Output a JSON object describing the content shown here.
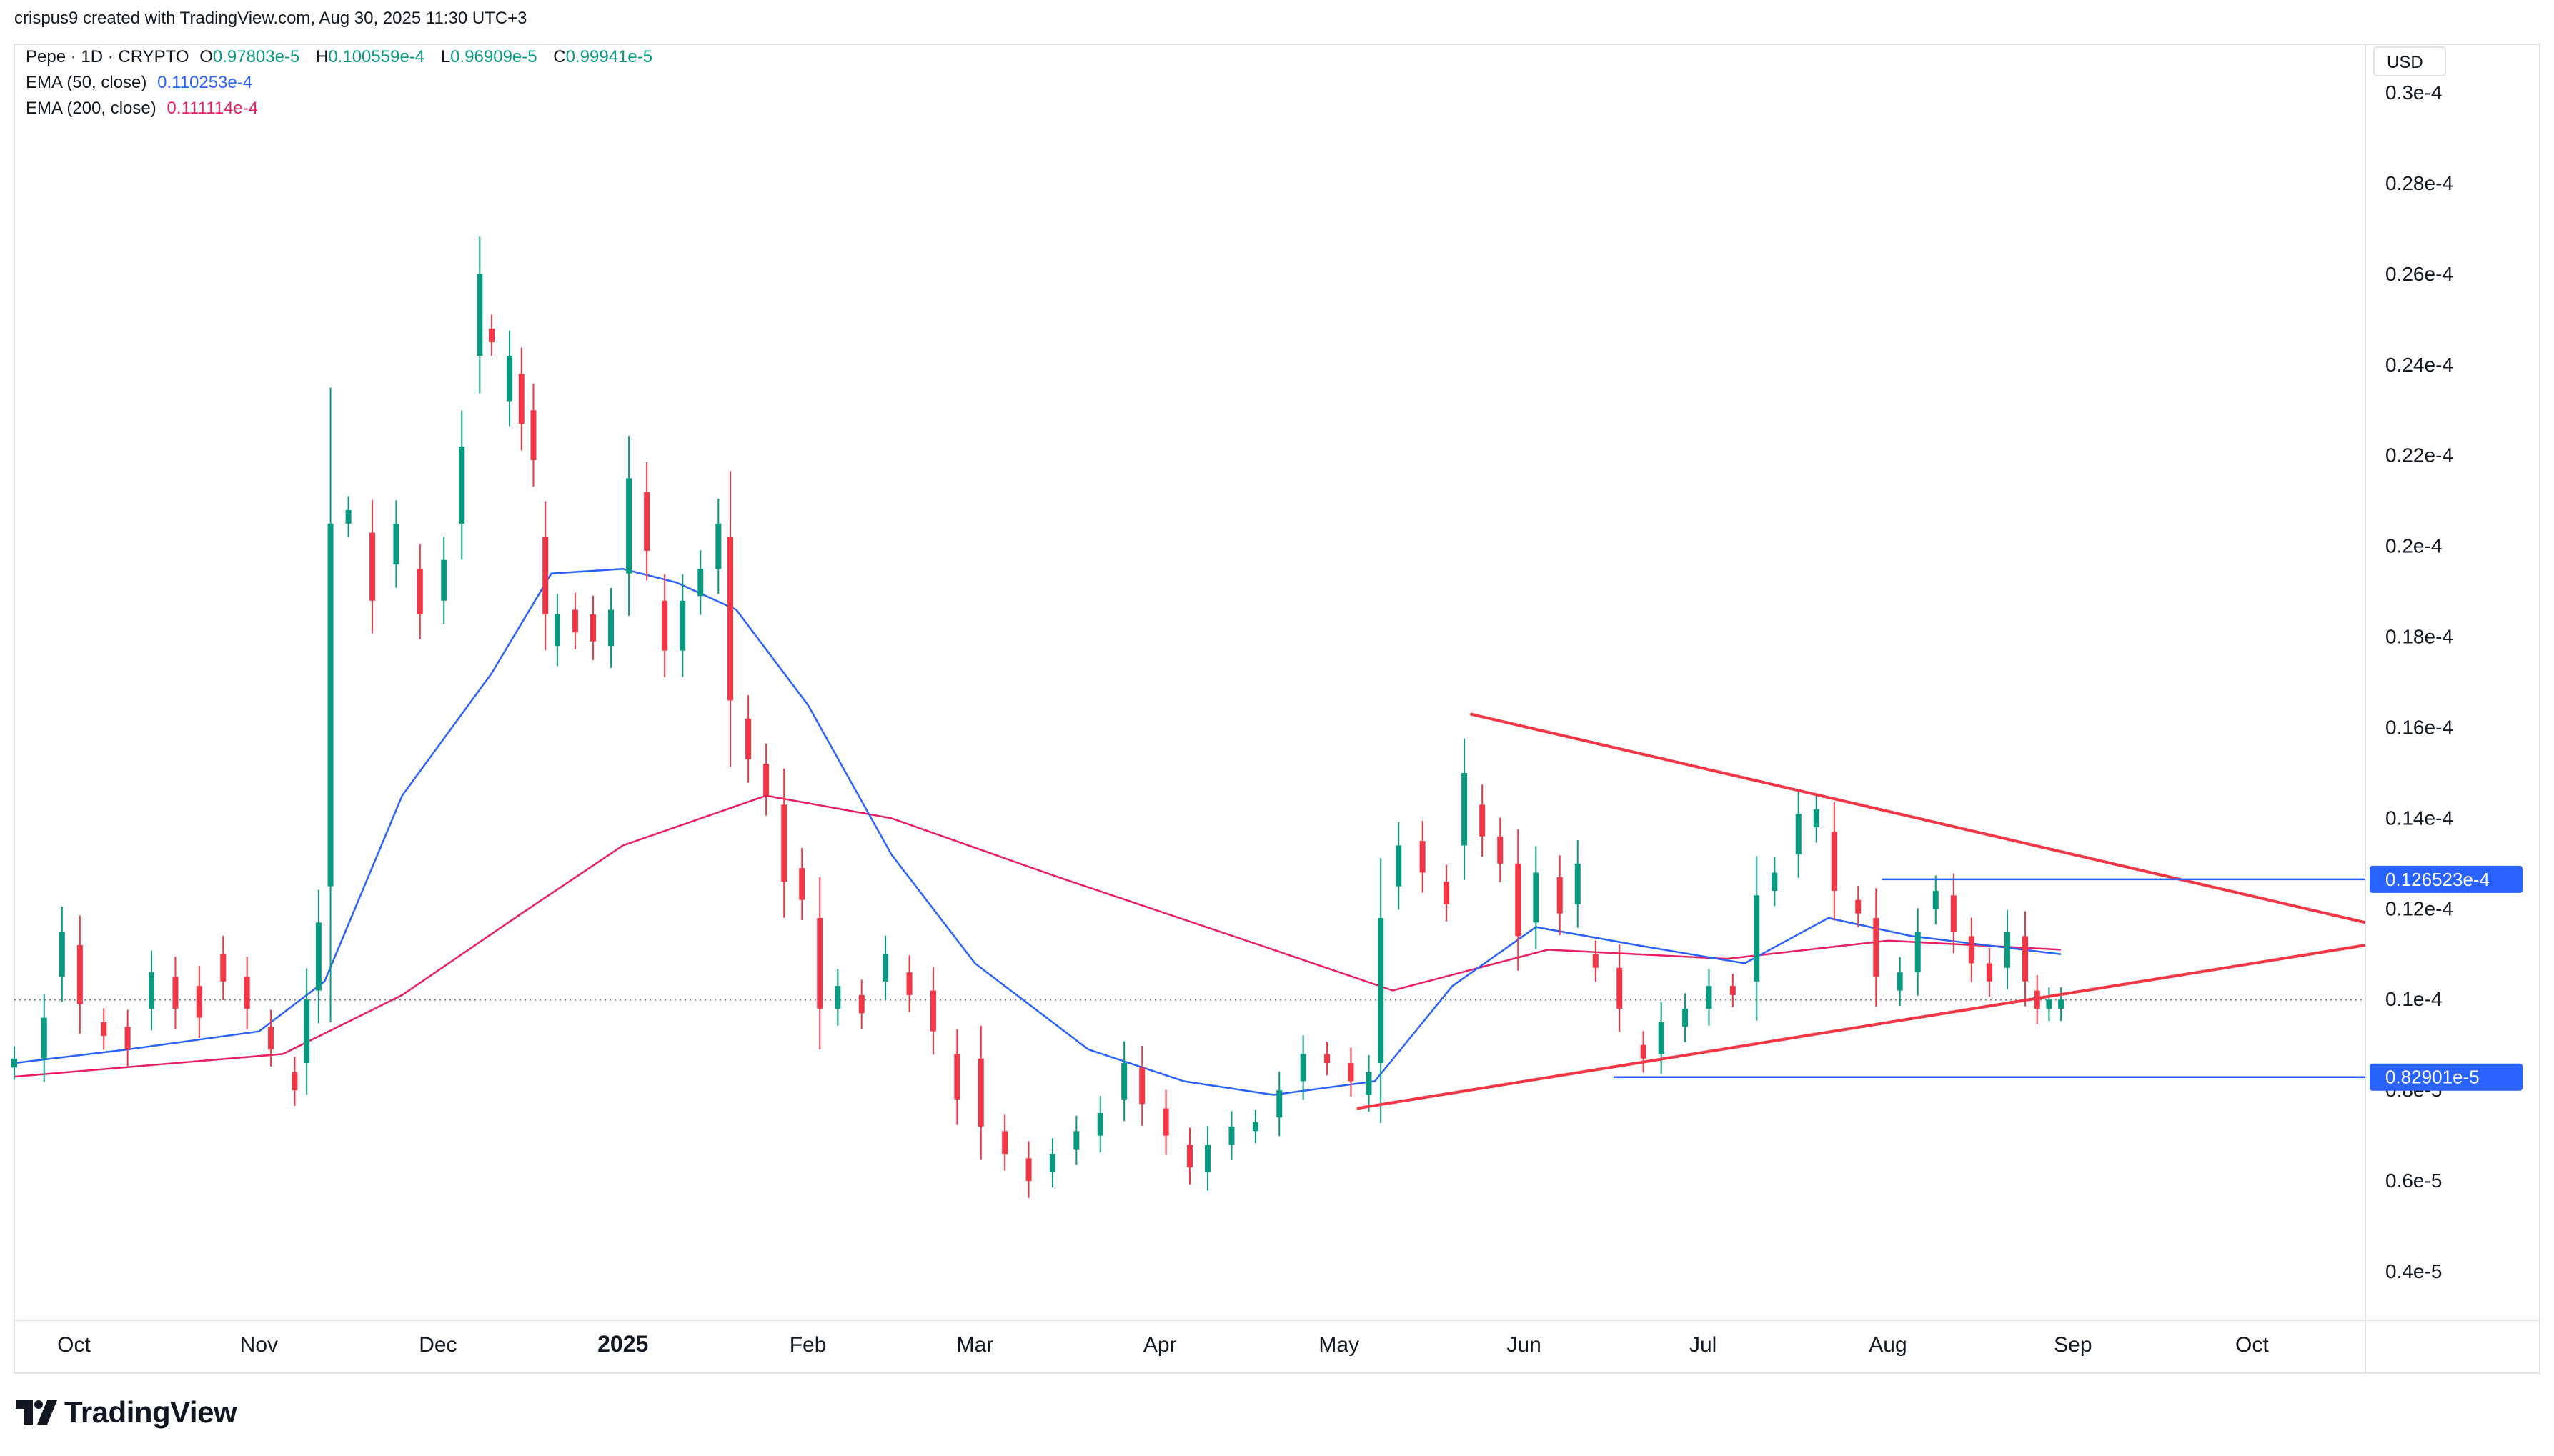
{
  "header": {
    "creator": "crispus9 created with TradingView.com, Aug 30, 2025 11:30 UTC+3",
    "symbol_line": "Pepe · 1D · CRYPTO",
    "ohlc": [
      {
        "key": "O",
        "value": "0.97803e-5"
      },
      {
        "key": "H",
        "value": "0.100559e-4"
      },
      {
        "key": "L",
        "value": "0.96909e-5"
      },
      {
        "key": "C",
        "value": "0.99941e-5"
      }
    ],
    "ema50_label": "EMA (50, close)",
    "ema50_value": "0.110253e-4",
    "ema200_label": "EMA (200, close)",
    "ema200_value": "0.111114e-4"
  },
  "currency": "USD",
  "brand": "TradingView",
  "colors": {
    "up": "#089981",
    "down": "#f23645",
    "ema50": "#2962ff",
    "ema200": "#e91e63",
    "trendline": "#f23645",
    "hline": "#2962ff",
    "price_tag_bg": "#2962ff"
  },
  "chart_data": {
    "type": "candlestick",
    "grid": false,
    "y_axis": {
      "ticks": [
        3e-05,
        2.8e-05,
        2.6e-05,
        2.4e-05,
        2.2e-05,
        2e-05,
        1.8e-05,
        1.6e-05,
        1.4e-05,
        1.2e-05,
        1e-05,
        8e-06,
        6e-06,
        4e-06
      ],
      "tick_labels": [
        "0.3e-4",
        "0.28e-4",
        "0.26e-4",
        "0.24e-4",
        "0.22e-4",
        "0.2e-4",
        "0.18e-4",
        "0.16e-4",
        "0.14e-4",
        "0.12e-4",
        "0.1e-4",
        "0.8e-5",
        "0.6e-5",
        "0.4e-5"
      ]
    },
    "x_axis": {
      "range": [
        "2024-09-21",
        "2025-10-20"
      ],
      "ticks": [
        "2024-10-01",
        "2024-11-01",
        "2024-12-01",
        "2025-01-01",
        "2025-02-01",
        "2025-03-01",
        "2025-04-01",
        "2025-05-01",
        "2025-06-01",
        "2025-07-01",
        "2025-08-01",
        "2025-09-01",
        "2025-10-01"
      ],
      "tick_labels": [
        "Oct",
        "Nov",
        "Dec",
        "2025",
        "Feb",
        "Mar",
        "Apr",
        "May",
        "Jun",
        "Jul",
        "Aug",
        "Sep",
        "Oct"
      ]
    },
    "candles": [
      [
        "2024-09-21",
        8.5e-06,
        8.7e-06
      ],
      [
        "2024-09-26",
        8.7e-06,
        9.6e-06
      ],
      [
        "2024-09-29",
        1.05e-05,
        1.15e-05
      ],
      [
        "2024-10-02",
        1.12e-05,
        9.9e-06
      ],
      [
        "2024-10-06",
        9.5e-06,
        9.2e-06
      ],
      [
        "2024-10-10",
        9.4e-06,
        8.9e-06
      ],
      [
        "2024-10-14",
        9.8e-06,
        1.06e-05
      ],
      [
        "2024-10-18",
        1.05e-05,
        9.8e-06
      ],
      [
        "2024-10-22",
        1.03e-05,
        9.6e-06
      ],
      [
        "2024-10-26",
        1.1e-05,
        1.04e-05
      ],
      [
        "2024-10-30",
        1.05e-05,
        9.8e-06
      ],
      [
        "2024-11-03",
        9.4e-06,
        8.9e-06
      ],
      [
        "2024-11-07",
        8.4e-06,
        8e-06
      ],
      [
        "2024-11-09",
        8.6e-06,
        1e-05
      ],
      [
        "2024-11-11",
        1.02e-05,
        1.17e-05
      ],
      [
        "2024-11-13",
        1.25e-05,
        2.05e-05
      ],
      [
        "2024-11-16",
        2.05e-05,
        2.08e-05
      ],
      [
        "2024-11-20",
        2.03e-05,
        1.88e-05
      ],
      [
        "2024-11-24",
        1.96e-05,
        2.05e-05
      ],
      [
        "2024-11-28",
        1.95e-05,
        1.85e-05
      ],
      [
        "2024-12-02",
        1.88e-05,
        1.97e-05
      ],
      [
        "2024-12-05",
        2.05e-05,
        2.22e-05
      ],
      [
        "2024-12-08",
        2.42e-05,
        2.6e-05
      ],
      [
        "2024-12-10",
        2.48e-05,
        2.45e-05
      ],
      [
        "2024-12-13",
        2.32e-05,
        2.42e-05
      ],
      [
        "2024-12-15",
        2.38e-05,
        2.27e-05
      ],
      [
        "2024-12-17",
        2.3e-05,
        2.19e-05
      ],
      [
        "2024-12-19",
        2.02e-05,
        1.85e-05
      ],
      [
        "2024-12-21",
        1.78e-05,
        1.85e-05
      ],
      [
        "2024-12-24",
        1.86e-05,
        1.81e-05
      ],
      [
        "2024-12-27",
        1.85e-05,
        1.79e-05
      ],
      [
        "2024-12-30",
        1.78e-05,
        1.86e-05
      ],
      [
        "2025-01-02",
        1.94e-05,
        2.15e-05
      ],
      [
        "2025-01-05",
        2.12e-05,
        1.99e-05
      ],
      [
        "2025-01-08",
        1.88e-05,
        1.77e-05
      ],
      [
        "2025-01-11",
        1.77e-05,
        1.88e-05
      ],
      [
        "2025-01-14",
        1.89e-05,
        1.95e-05
      ],
      [
        "2025-01-17",
        1.95e-05,
        2.05e-05
      ],
      [
        "2025-01-19",
        2.02e-05,
        1.66e-05
      ],
      [
        "2025-01-22",
        1.62e-05,
        1.53e-05
      ],
      [
        "2025-01-25",
        1.52e-05,
        1.45e-05
      ],
      [
        "2025-01-28",
        1.43e-05,
        1.26e-05
      ],
      [
        "2025-01-31",
        1.29e-05,
        1.22e-05
      ],
      [
        "2025-02-03",
        1.18e-05,
        9.8e-06
      ],
      [
        "2025-02-06",
        9.8e-06,
        1.03e-05
      ],
      [
        "2025-02-10",
        1.01e-05,
        9.7e-06
      ],
      [
        "2025-02-14",
        1.04e-05,
        1.1e-05
      ],
      [
        "2025-02-18",
        1.06e-05,
        1.01e-05
      ],
      [
        "2025-02-22",
        1.02e-05,
        9.3e-06
      ],
      [
        "2025-02-26",
        8.8e-06,
        7.8e-06
      ],
      [
        "2025-03-02",
        8.7e-06,
        7.2e-06
      ],
      [
        "2025-03-06",
        7.1e-06,
        6.6e-06
      ],
      [
        "2025-03-10",
        6.5e-06,
        6e-06
      ],
      [
        "2025-03-14",
        6.2e-06,
        6.6e-06
      ],
      [
        "2025-03-18",
        6.7e-06,
        7.1e-06
      ],
      [
        "2025-03-22",
        7e-06,
        7.5e-06
      ],
      [
        "2025-03-26",
        7.8e-06,
        8.6e-06
      ],
      [
        "2025-03-29",
        8.5e-06,
        7.7e-06
      ],
      [
        "2025-04-02",
        7.6e-06,
        7e-06
      ],
      [
        "2025-04-06",
        6.8e-06,
        6.3e-06
      ],
      [
        "2025-04-09",
        6.2e-06,
        6.8e-06
      ],
      [
        "2025-04-13",
        6.8e-06,
        7.2e-06
      ],
      [
        "2025-04-17",
        7.1e-06,
        7.3e-06
      ],
      [
        "2025-04-21",
        7.4e-06,
        8e-06
      ],
      [
        "2025-04-25",
        8.2e-06,
        8.8e-06
      ],
      [
        "2025-04-29",
        8.8e-06,
        8.6e-06
      ],
      [
        "2025-05-03",
        8.6e-06,
        8.2e-06
      ],
      [
        "2025-05-06",
        7.9e-06,
        8.4e-06
      ],
      [
        "2025-05-08",
        8.6e-06,
        1.18e-05
      ],
      [
        "2025-05-11",
        1.25e-05,
        1.34e-05
      ],
      [
        "2025-05-15",
        1.35e-05,
        1.28e-05
      ],
      [
        "2025-05-19",
        1.26e-05,
        1.21e-05
      ],
      [
        "2025-05-22",
        1.34e-05,
        1.5e-05
      ],
      [
        "2025-05-25",
        1.43e-05,
        1.36e-05
      ],
      [
        "2025-05-28",
        1.36e-05,
        1.3e-05
      ],
      [
        "2025-05-31",
        1.3e-05,
        1.14e-05
      ],
      [
        "2025-06-03",
        1.17e-05,
        1.28e-05
      ],
      [
        "2025-06-07",
        1.27e-05,
        1.19e-05
      ],
      [
        "2025-06-10",
        1.21e-05,
        1.3e-05
      ],
      [
        "2025-06-13",
        1.1e-05,
        1.07e-05
      ],
      [
        "2025-06-17",
        1.07e-05,
        9.8e-06
      ],
      [
        "2025-06-21",
        9e-06,
        8.7e-06
      ],
      [
        "2025-06-24",
        8.8e-06,
        9.5e-06
      ],
      [
        "2025-06-28",
        9.4e-06,
        9.8e-06
      ],
      [
        "2025-07-02",
        9.8e-06,
        1.03e-05
      ],
      [
        "2025-07-06",
        1.03e-05,
        1.01e-05
      ],
      [
        "2025-07-10",
        1.04e-05,
        1.23e-05
      ],
      [
        "2025-07-13",
        1.24e-05,
        1.28e-05
      ],
      [
        "2025-07-17",
        1.32e-05,
        1.41e-05
      ],
      [
        "2025-07-20",
        1.38e-05,
        1.42e-05
      ],
      [
        "2025-07-23",
        1.37e-05,
        1.24e-05
      ],
      [
        "2025-07-27",
        1.22e-05,
        1.19e-05
      ],
      [
        "2025-07-30",
        1.18e-05,
        1.05e-05
      ],
      [
        "2025-08-03",
        1.02e-05,
        1.06e-05
      ],
      [
        "2025-08-06",
        1.06e-05,
        1.15e-05
      ],
      [
        "2025-08-09",
        1.2e-05,
        1.24e-05
      ],
      [
        "2025-08-12",
        1.23e-05,
        1.15e-05
      ],
      [
        "2025-08-15",
        1.14e-05,
        1.08e-05
      ],
      [
        "2025-08-18",
        1.08e-05,
        1.04e-05
      ],
      [
        "2025-08-21",
        1.07e-05,
        1.15e-05
      ],
      [
        "2025-08-24",
        1.14e-05,
        1.04e-05
      ],
      [
        "2025-08-26",
        1.02e-05,
        9.8e-06
      ],
      [
        "2025-08-28",
        9.8e-06,
        1e-05
      ],
      [
        "2025-08-30",
        9.8e-06,
        1e-05
      ]
    ],
    "ema50": [
      [
        "2024-09-21",
        8.6e-06
      ],
      [
        "2024-10-10",
        8.9e-06
      ],
      [
        "2024-11-01",
        9.3e-06
      ],
      [
        "2024-11-12",
        1.04e-05
      ],
      [
        "2024-11-25",
        1.45e-05
      ],
      [
        "2024-12-10",
        1.72e-05
      ],
      [
        "2024-12-20",
        1.94e-05
      ],
      [
        "2025-01-01",
        1.95e-05
      ],
      [
        "2025-01-10",
        1.92e-05
      ],
      [
        "2025-01-20",
        1.86e-05
      ],
      [
        "2025-02-01",
        1.65e-05
      ],
      [
        "2025-02-15",
        1.32e-05
      ],
      [
        "2025-03-01",
        1.08e-05
      ],
      [
        "2025-03-20",
        8.9e-06
      ],
      [
        "2025-04-05",
        8.2e-06
      ],
      [
        "2025-04-20",
        7.9e-06
      ],
      [
        "2025-05-07",
        8.2e-06
      ],
      [
        "2025-05-20",
        1.03e-05
      ],
      [
        "2025-06-03",
        1.16e-05
      ],
      [
        "2025-06-20",
        1.12e-05
      ],
      [
        "2025-07-08",
        1.08e-05
      ],
      [
        "2025-07-22",
        1.18e-05
      ],
      [
        "2025-08-05",
        1.14e-05
      ],
      [
        "2025-08-30",
        1.1e-05
      ]
    ],
    "ema200": [
      [
        "2024-09-21",
        8.3e-06
      ],
      [
        "2024-11-05",
        8.8e-06
      ],
      [
        "2024-11-25",
        1.01e-05
      ],
      [
        "2024-12-15",
        1.19e-05
      ],
      [
        "2025-01-01",
        1.34e-05
      ],
      [
        "2025-01-25",
        1.45e-05
      ],
      [
        "2025-02-15",
        1.4e-05
      ],
      [
        "2025-03-15",
        1.27e-05
      ],
      [
        "2025-04-20",
        1.11e-05
      ],
      [
        "2025-05-10",
        1.02e-05
      ],
      [
        "2025-06-05",
        1.11e-05
      ],
      [
        "2025-07-05",
        1.09e-05
      ],
      [
        "2025-08-01",
        1.13e-05
      ],
      [
        "2025-08-30",
        1.11e-05
      ]
    ],
    "trendlines": [
      {
        "from": [
          "2025-05-23",
          1.63e-05
        ],
        "to": [
          "2025-10-20",
          1.17e-05
        ]
      },
      {
        "from": [
          "2025-05-04",
          7.6e-06
        ],
        "to": [
          "2025-10-20",
          1.12e-05
        ]
      }
    ],
    "horizontal_levels": [
      {
        "from": "2025-07-31",
        "value": 1.26523e-05,
        "label": "0.126523e-4"
      },
      {
        "from": "2025-06-16",
        "value": 8.2901e-06,
        "label": "0.82901e-5"
      }
    ],
    "last_price": 9.9941e-06
  }
}
